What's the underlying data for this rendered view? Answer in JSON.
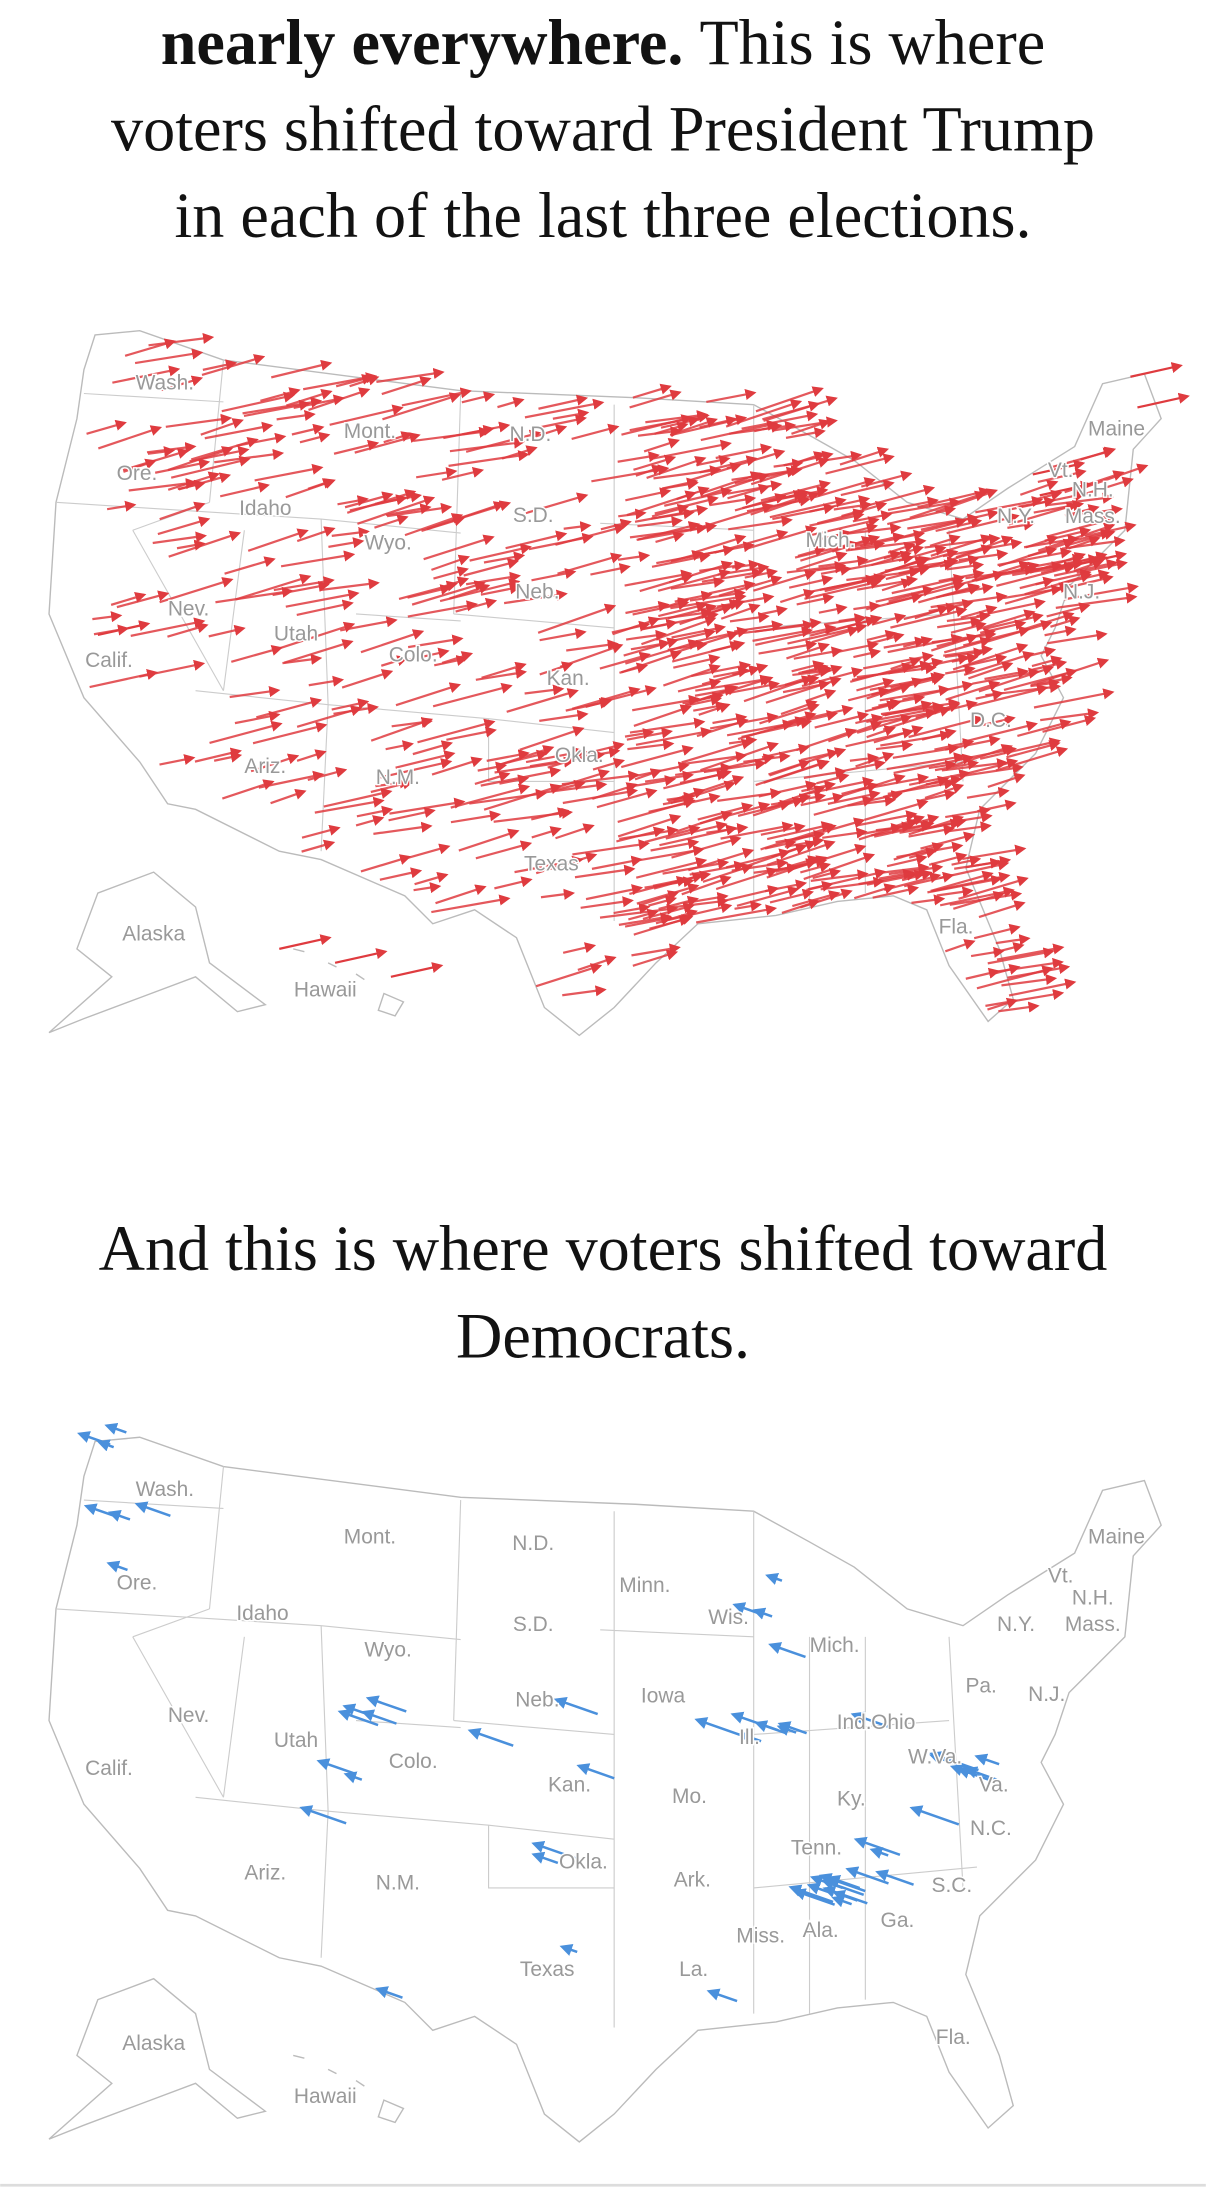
{
  "intro": {
    "lines": [
      {
        "bold": "nearly everywhere.",
        "text": "This is where"
      },
      "voters shifted toward President Trump",
      "in each of the last three elections."
    ]
  },
  "maps": [
    {
      "labels": [
        "Wash.",
        "Mont.",
        "N.D.",
        "Ore.",
        "Idaho",
        "S.D.",
        "Wyo.",
        "Nev.",
        "Utah",
        "Calif.",
        "Colo.",
        "Kan.",
        "Ariz.",
        "N.M.",
        "Okla.",
        "Texas",
        "Alaska",
        "Hawaii",
        "Maine",
        "Vt.",
        "N.H.",
        "N.Y.",
        "Mass.",
        "N.J.",
        "Mich.",
        "Neb.",
        "D.C.",
        "Fla."
      ]
    },
    {
      "labels": [
        "Wash.",
        "Mont.",
        "N.D.",
        "Minn.",
        "Maine",
        "Vt.",
        "N.H.",
        "Ore.",
        "Idaho",
        "S.D.",
        "Wis.",
        "Mich.",
        "N.Y.",
        "Mass.",
        "Wyo.",
        "Pa.",
        "N.J.",
        "Neb.",
        "Iowa",
        "Nev.",
        "Utah",
        "Ind.",
        "Ohio",
        "Ill.",
        "Colo.",
        "W.Va.",
        "Calif.",
        "Kan.",
        "Mo.",
        "Ky.",
        "Va.",
        "N.C.",
        "Tenn.",
        "Ariz.",
        "N.M.",
        "Okla.",
        "Ark.",
        "S.C.",
        "Miss.",
        "Ala.",
        "Ga.",
        "Texas",
        "La.",
        "Alaska",
        "Fla.",
        "Hawaii"
      ]
    }
  ],
  "second_heading": {
    "lines": [
      "And this is where voters shifted toward",
      "Democrats."
    ]
  }
}
